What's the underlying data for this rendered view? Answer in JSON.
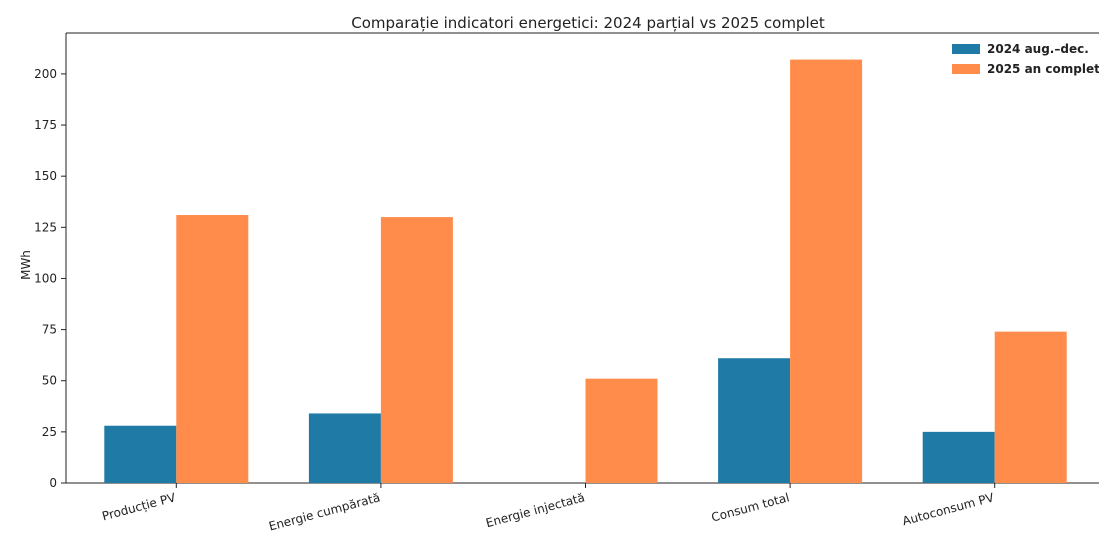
{
  "chart_data": {
    "type": "bar",
    "title": "Comparație indicatori energetici: 2024 parțial vs 2025 complet",
    "xlabel": "",
    "ylabel": "MWh",
    "ylim": [
      0,
      220
    ],
    "yticks": [
      0,
      25,
      50,
      75,
      100,
      125,
      150,
      175,
      200
    ],
    "categories": [
      "Producție PV",
      "Energie cumpărată",
      "Energie injectată",
      "Consum total",
      "Autoconsum PV"
    ],
    "series": [
      {
        "name": "2024 aug.–dec.",
        "color": "#1f7ba5",
        "values": [
          28,
          34,
          0,
          61,
          25
        ]
      },
      {
        "name": "2025 an complet",
        "color": "#ff8c4a",
        "values": [
          131,
          130,
          51,
          207,
          74
        ]
      }
    ],
    "grid": false,
    "legend": "top-right"
  }
}
